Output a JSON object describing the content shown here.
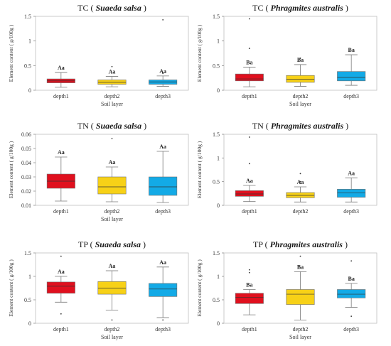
{
  "colors": {
    "depth1": "#e0101e",
    "depth2": "#f7d117",
    "depth3": "#13aae6"
  },
  "chart_data": [
    {
      "type": "box",
      "title": "TC ( ",
      "title_species": "Suaeda salsa",
      "title_end": " )",
      "xlabel": "Soil layer",
      "ylabel": "Element content ( g/100g )",
      "ylim": [
        0,
        1.5
      ],
      "yticks": [
        "0",
        "0.5",
        "1",
        "1.5"
      ],
      "categories": [
        "depth1",
        "depth2",
        "depth3"
      ],
      "boxes": [
        {
          "min": 0.06,
          "q1": 0.15,
          "median": 0.19,
          "q3": 0.23,
          "max": 0.36,
          "outliers": [],
          "label": "Aa"
        },
        {
          "min": 0.07,
          "q1": 0.12,
          "median": 0.16,
          "q3": 0.21,
          "max": 0.28,
          "outliers": [
            0.48
          ],
          "label": "Aa"
        },
        {
          "min": 0.08,
          "q1": 0.12,
          "median": 0.17,
          "q3": 0.21,
          "max": 0.29,
          "outliers": [
            0.34,
            1.43
          ],
          "label": "Aa"
        }
      ]
    },
    {
      "type": "box",
      "title": "TC ( ",
      "title_species": "Phragmites australis",
      "title_end": " )",
      "xlabel": "Soil layer",
      "ylabel": "Element content ( g/100g )",
      "ylim": [
        0,
        1.5
      ],
      "yticks": [
        "0",
        "0.5",
        "1",
        "1.5"
      ],
      "categories": [
        "depth1",
        "depth2",
        "depth3"
      ],
      "boxes": [
        {
          "min": 0.07,
          "q1": 0.19,
          "median": 0.23,
          "q3": 0.33,
          "max": 0.47,
          "outliers": [
            0.85,
            1.45
          ],
          "label": "Ba"
        },
        {
          "min": 0.08,
          "q1": 0.16,
          "median": 0.22,
          "q3": 0.3,
          "max": 0.52,
          "outliers": [
            0.65
          ],
          "label": "Ba"
        },
        {
          "min": 0.1,
          "q1": 0.19,
          "median": 0.26,
          "q3": 0.38,
          "max": 0.72,
          "outliers": [],
          "label": "Ba"
        }
      ]
    },
    {
      "type": "box",
      "title": "TN ( ",
      "title_species": "Suaeda salsa",
      "title_end": " )",
      "xlabel": "Soil layer",
      "ylabel": "Element content ( g/100g )",
      "ylim": [
        0.01,
        0.06
      ],
      "yticks": [
        "0.01",
        "0.02",
        "0.03",
        "0.04",
        "0.05",
        "0.06"
      ],
      "categories": [
        "depth1",
        "depth2",
        "depth3"
      ],
      "boxes": [
        {
          "min": 0.013,
          "q1": 0.022,
          "median": 0.027,
          "q3": 0.032,
          "max": 0.044,
          "outliers": [],
          "label": "Aa"
        },
        {
          "min": 0.0125,
          "q1": 0.018,
          "median": 0.023,
          "q3": 0.03,
          "max": 0.037,
          "outliers": [
            0.057
          ],
          "label": "Aa"
        },
        {
          "min": 0.012,
          "q1": 0.017,
          "median": 0.023,
          "q3": 0.03,
          "max": 0.048,
          "outliers": [],
          "label": "Aa"
        }
      ]
    },
    {
      "type": "box",
      "title": "TN ( ",
      "title_species": "Phragmites australis",
      "title_end": " )",
      "xlabel": "",
      "ylabel": "Element content ( g/100g )",
      "ylim": [
        0,
        1.5
      ],
      "yticks": [
        "0",
        "0.5",
        "1",
        "1.5"
      ],
      "categories": [
        "depth1",
        "depth2",
        "depth3"
      ],
      "boxes": [
        {
          "min": 0.08,
          "q1": 0.19,
          "median": 0.24,
          "q3": 0.31,
          "max": 0.42,
          "outliers": [
            0.88,
            1.44
          ],
          "label": "Aa"
        },
        {
          "min": 0.07,
          "q1": 0.16,
          "median": 0.21,
          "q3": 0.27,
          "max": 0.39,
          "outliers": [
            0.5,
            0.67
          ],
          "label": "Aa"
        },
        {
          "min": 0.07,
          "q1": 0.17,
          "median": 0.26,
          "q3": 0.34,
          "max": 0.58,
          "outliers": [],
          "label": "Aa"
        }
      ]
    },
    {
      "type": "box",
      "title": "TP ( ",
      "title_species": "Suaeda salsa",
      "title_end": " )",
      "xlabel": "Soil layer",
      "ylabel": "Element content ( g/100g )",
      "ylim": [
        0,
        1.5
      ],
      "yticks": [
        "0",
        "0.5",
        "1",
        "1.5"
      ],
      "categories": [
        "depth1",
        "depth2",
        "depth3"
      ],
      "boxes": [
        {
          "min": 0.45,
          "q1": 0.64,
          "median": 0.79,
          "q3": 0.88,
          "max": 1.0,
          "outliers": [
            0.2,
            1.43
          ],
          "label": "Aa"
        },
        {
          "min": 0.28,
          "q1": 0.62,
          "median": 0.75,
          "q3": 0.89,
          "max": 1.12,
          "outliers": [
            0.07
          ],
          "label": "Aa"
        },
        {
          "min": 0.12,
          "q1": 0.57,
          "median": 0.73,
          "q3": 0.85,
          "max": 1.2,
          "outliers": [
            0.07
          ],
          "label": "Aa"
        }
      ]
    },
    {
      "type": "box",
      "title": "TP ( ",
      "title_species": "Phragmites australis",
      "title_end": " )",
      "xlabel": "Soil layer",
      "ylabel": "Element content ( g/100g )",
      "ylim": [
        0,
        1.5
      ],
      "yticks": [
        "0",
        "0.5",
        "1",
        "1.5"
      ],
      "categories": [
        "depth1",
        "depth2",
        "depth3"
      ],
      "boxes": [
        {
          "min": 0.18,
          "q1": 0.42,
          "median": 0.55,
          "q3": 0.64,
          "max": 0.72,
          "outliers": [
            1.08,
            1.14
          ],
          "label": "Ba"
        },
        {
          "min": 0.07,
          "q1": 0.4,
          "median": 0.62,
          "q3": 0.72,
          "max": 1.1,
          "outliers": [
            1.43
          ],
          "label": "Ba"
        },
        {
          "min": 0.34,
          "q1": 0.54,
          "median": 0.62,
          "q3": 0.72,
          "max": 0.85,
          "outliers": [
            0.15,
            1.33
          ],
          "label": "Ba"
        }
      ]
    }
  ]
}
